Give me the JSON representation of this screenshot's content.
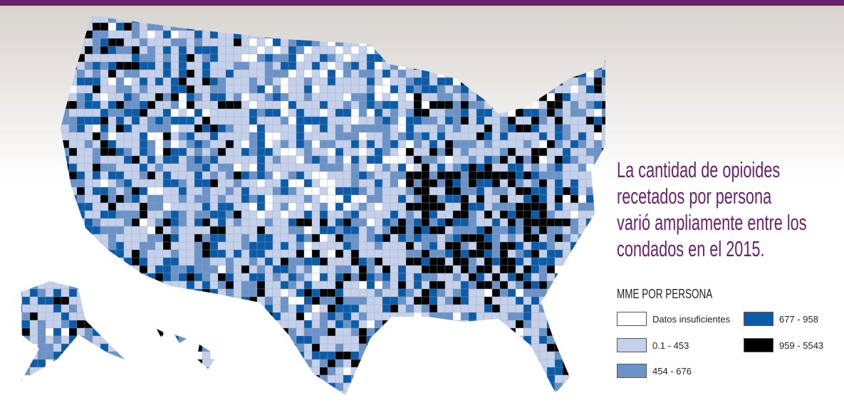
{
  "title_lines": [
    "La cantidad de opioides",
    "recetados por persona",
    "varió ampliamente entre los",
    "condados en el 2015."
  ],
  "legend": {
    "title": "MME POR PERSONA",
    "items": [
      {
        "label": "Datos insuficientes",
        "color": "#ffffff"
      },
      {
        "label": "0.1 - 453",
        "color": "#c5d1ea"
      },
      {
        "label": "454 - 676",
        "color": "#6c93c7"
      },
      {
        "label": "677 - 958",
        "color": "#0b5ba7"
      },
      {
        "label": "959 - 5543",
        "color": "#000000"
      }
    ]
  }
}
